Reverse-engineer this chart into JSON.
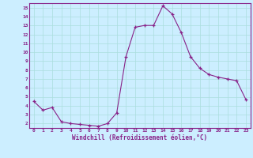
{
  "x": [
    0,
    1,
    2,
    3,
    4,
    5,
    6,
    7,
    8,
    9,
    10,
    11,
    12,
    13,
    14,
    15,
    16,
    17,
    18,
    19,
    20,
    21,
    22,
    23
  ],
  "y": [
    4.5,
    3.5,
    3.8,
    2.2,
    2.0,
    1.9,
    1.8,
    1.7,
    2.0,
    3.2,
    9.5,
    12.8,
    13.0,
    13.0,
    15.2,
    14.3,
    12.2,
    9.5,
    8.2,
    7.5,
    7.2,
    7.0,
    6.8,
    4.7
  ],
  "line_color": "#882288",
  "marker": "+",
  "marker_color": "#882288",
  "bg_color": "#cceeff",
  "grid_color": "#aadddd",
  "xlabel": "Windchill (Refroidissement éolien,°C)",
  "xlabel_color": "#882288",
  "tick_color": "#882288",
  "axis_color": "#882288",
  "xlim": [
    -0.5,
    23.5
  ],
  "ylim": [
    1.5,
    15.5
  ],
  "yticks": [
    2,
    3,
    4,
    5,
    6,
    7,
    8,
    9,
    10,
    11,
    12,
    13,
    14,
    15
  ],
  "xticks": [
    0,
    1,
    2,
    3,
    4,
    5,
    6,
    7,
    8,
    9,
    10,
    11,
    12,
    13,
    14,
    15,
    16,
    17,
    18,
    19,
    20,
    21,
    22,
    23
  ]
}
